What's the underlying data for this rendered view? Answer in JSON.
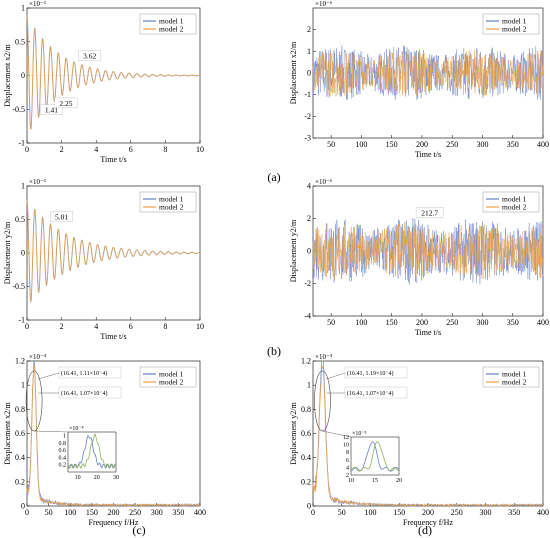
{
  "figure": {
    "tags": [
      "(a)",
      "(b)",
      "(c)",
      "(d)"
    ]
  },
  "colors": {
    "model1": "#6a7fc8",
    "model2": "#e8a24a",
    "accent_green": "#8fb15a",
    "axis": "#000000",
    "grid": "#d9d9d9"
  },
  "chart_data": [
    {
      "id": "a-left",
      "type": "line",
      "ylabel": "Displacement x2/m",
      "xlabel": "Time t/s",
      "multiplier": "×10⁻³",
      "xlim": [
        0,
        10
      ],
      "ylim": [
        -1,
        1
      ],
      "x_ticks": [
        "0",
        "2",
        "4",
        "6",
        "8",
        "10"
      ],
      "y_ticks": [
        "-1",
        "-0.5",
        "0",
        "0.5",
        "1"
      ],
      "legend": [
        "model 1",
        "model 2"
      ],
      "signal": {
        "kind": "decay",
        "amplitude": 0.9,
        "freq_hz": 2.2,
        "decay": 0.55
      },
      "annotations": [
        {
          "text": "1.41",
          "x": 1.41,
          "y": -0.55
        },
        {
          "text": "2.25",
          "x": 2.25,
          "y": -0.45
        },
        {
          "text": "3.62",
          "x": 3.62,
          "y": 0.25
        }
      ]
    },
    {
      "id": "a-right",
      "type": "line",
      "ylabel": "Displacement x2/m",
      "xlabel": "Time t/s",
      "multiplier": "×10⁻⁶",
      "xlim": [
        20,
        400
      ],
      "ylim": [
        -3,
        3
      ],
      "x_ticks": [
        "50",
        "100",
        "150",
        "200",
        "250",
        "300",
        "350",
        "400"
      ],
      "y_ticks": [
        "-3",
        "-2",
        "-1",
        "0",
        "1",
        "2"
      ],
      "legend": [
        "model 1",
        "model 2"
      ],
      "signal": {
        "kind": "noise",
        "amplitude": 1.0
      },
      "annotations": []
    },
    {
      "id": "b-left",
      "type": "line",
      "ylabel": "Displacement y2/m",
      "xlabel": "Time t/s",
      "multiplier": "×10⁻³",
      "xlim": [
        0,
        10
      ],
      "ylim": [
        -1,
        1
      ],
      "x_ticks": [
        "0",
        "2",
        "4",
        "6",
        "8",
        "10"
      ],
      "y_ticks": [
        "-1",
        "-0.5",
        "0",
        "0.5",
        "1"
      ],
      "legend": [
        "model 1",
        "model 2"
      ],
      "signal": {
        "kind": "decay",
        "amplitude": 0.8,
        "freq_hz": 2.2,
        "decay": 0.45
      },
      "annotations": [
        {
          "text": "5.01",
          "x": 2.0,
          "y": 0.5
        }
      ]
    },
    {
      "id": "b-right",
      "type": "line",
      "ylabel": "Displacement y2/m",
      "xlabel": "Time t/s",
      "multiplier": "×10⁻⁶",
      "xlim": [
        20,
        400
      ],
      "ylim": [
        -4,
        4
      ],
      "x_ticks": [
        "50",
        "100",
        "150",
        "200",
        "250",
        "300",
        "350",
        "400"
      ],
      "y_ticks": [
        "-4",
        "-2",
        "0",
        "2",
        "4"
      ],
      "legend": [
        "model 1",
        "model 2"
      ],
      "signal": {
        "kind": "noise",
        "amplitude": 1.6
      },
      "annotations": [
        {
          "text": "212.7",
          "x": 212.7,
          "y": 2.2
        }
      ]
    },
    {
      "id": "c",
      "type": "line",
      "ylabel": "Displacement x2/m",
      "xlabel": "Frequency f/Hz",
      "multiplier": "×10⁻⁴",
      "xlim": [
        0,
        400
      ],
      "ylim": [
        0,
        1.2
      ],
      "x_ticks": [
        "0",
        "50",
        "100",
        "150",
        "200",
        "250",
        "300",
        "350",
        "400"
      ],
      "y_ticks": [
        "0",
        "0.2",
        "0.4",
        "0.6",
        "0.8",
        "1",
        "1.2"
      ],
      "legend": [
        "model 1",
        "model 2"
      ],
      "signal": {
        "kind": "spectrum",
        "peak": 1.11
      },
      "annotations": [
        {
          "text": "(16.41, 1.11×10⁻4)"
        },
        {
          "text": "(16.41, 1.07×10⁻4)"
        }
      ],
      "inset": {
        "multiplier": "×10⁻⁴",
        "xlim": [
          5,
          30
        ],
        "ylim": [
          0,
          1.1
        ],
        "x_ticks": [
          "10",
          "20",
          "30"
        ],
        "y_ticks": [
          "0.2",
          "0.4",
          "0.6",
          "0.8",
          "1"
        ]
      }
    },
    {
      "id": "d",
      "type": "line",
      "ylabel": "Displacement y2/m",
      "xlabel": "Frequency f/Hz",
      "multiplier": "×10⁻⁴",
      "xlim": [
        0,
        400
      ],
      "ylim": [
        0,
        1.2
      ],
      "x_ticks": [
        "0",
        "50",
        "100",
        "150",
        "200",
        "250",
        "300",
        "350",
        "400"
      ],
      "y_ticks": [
        "0",
        "0.2",
        "0.4",
        "0.6",
        "0.8",
        "1",
        "1.2"
      ],
      "legend": [
        "model 1",
        "model 2"
      ],
      "signal": {
        "kind": "spectrum",
        "peak": 1.19
      },
      "annotations": [
        {
          "text": "(16.41, 1.19×10⁻4)"
        },
        {
          "text": "(16.41, 1.07×10⁻4)"
        }
      ],
      "inset": {
        "multiplier": "×10⁻⁵",
        "xlim": [
          10,
          20
        ],
        "ylim": [
          2,
          12
        ],
        "x_ticks": [
          "10",
          "15",
          "20"
        ],
        "y_ticks": [
          "2",
          "4",
          "6",
          "8",
          "10",
          "12"
        ]
      }
    }
  ]
}
